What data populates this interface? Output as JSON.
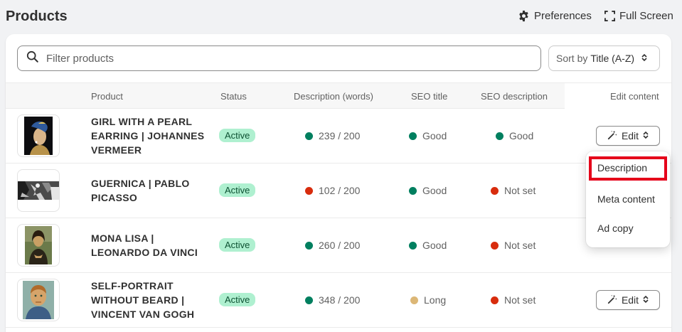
{
  "header": {
    "title": "Products",
    "preferences_label": "Preferences",
    "fullscreen_label": "Full Screen"
  },
  "toolbar": {
    "search_placeholder": "Filter products",
    "sort_prefix": "Sort by",
    "sort_value": "Title (A-Z)"
  },
  "table": {
    "columns": [
      "Product",
      "Status",
      "Description (words)",
      "SEO title",
      "SEO description",
      "Edit content"
    ],
    "rows": [
      {
        "name": "GIRL WITH A PEARL EARRING | JOHANNES VERMEER",
        "status": "Active",
        "description": "239 / 200",
        "description_color": "#007f5f",
        "seo_title": "Good",
        "seo_title_color": "#007f5f",
        "seo_description": "Good",
        "seo_description_color": "#007f5f",
        "edit_label": "Edit"
      },
      {
        "name": "GUERNICA | PABLO PICASSO",
        "status": "Active",
        "description": "102 / 200",
        "description_color": "#d82c0d",
        "seo_title": "Good",
        "seo_title_color": "#007f5f",
        "seo_description": "Not set",
        "seo_description_color": "#d82c0d",
        "edit_label": "Edit"
      },
      {
        "name": "MONA LISA | LEONARDO DA VINCI",
        "status": "Active",
        "description": "260 / 200",
        "description_color": "#007f5f",
        "seo_title": "Good",
        "seo_title_color": "#007f5f",
        "seo_description": "Not set",
        "seo_description_color": "#d82c0d",
        "edit_label": "Edit"
      },
      {
        "name": "SELF-PORTRAIT WITHOUT BEARD | VINCENT VAN GOGH",
        "status": "Active",
        "description": "348 / 200",
        "description_color": "#007f5f",
        "seo_title": "Long",
        "seo_title_color": "#dcb776",
        "seo_description": "Not set",
        "seo_description_color": "#d82c0d",
        "edit_label": "Edit"
      }
    ]
  },
  "edit_menu": {
    "items": [
      "Description",
      "Meta content",
      "Ad copy"
    ],
    "highlighted_item": "Description",
    "highlight_color": "#e5001a"
  },
  "icons": [
    "gear-icon",
    "fullscreen-icon",
    "search-icon",
    "sort-caret-icon",
    "magic-wand-icon"
  ]
}
